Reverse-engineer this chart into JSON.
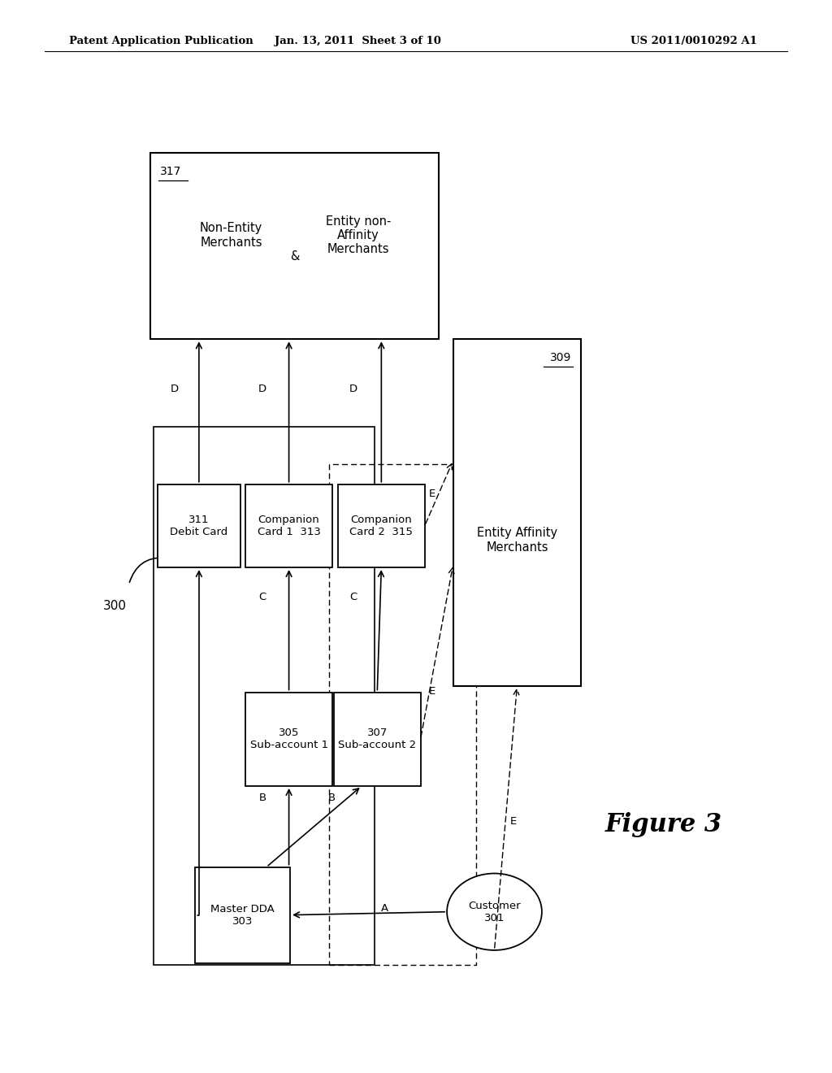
{
  "header_left": "Patent Application Publication",
  "header_mid": "Jan. 13, 2011  Sheet 3 of 10",
  "header_right": "US 2011/0010292 A1",
  "figure_label": "Figure 3",
  "diagram_label": "300",
  "bg_color": "#ffffff"
}
